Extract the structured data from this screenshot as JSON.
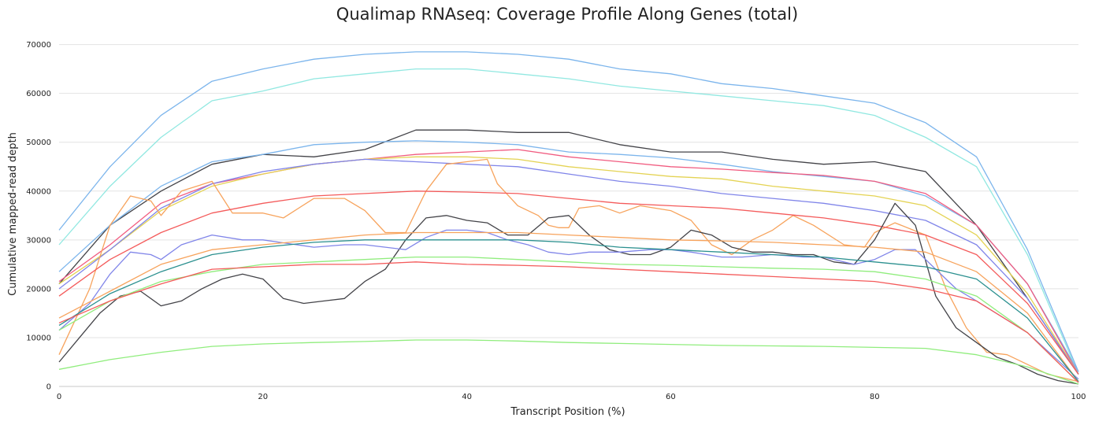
{
  "chart_data": {
    "type": "line",
    "title": "Qualimap RNAseq: Coverage Profile Along Genes (total)",
    "xlabel": "Transcript Position (%)",
    "ylabel": "Cumulative mapped-read depth",
    "xlim": [
      0,
      100
    ],
    "ylim": [
      0,
      73000
    ],
    "xticks": [
      0,
      20,
      40,
      60,
      80,
      100
    ],
    "yticks": [
      0,
      10000,
      20000,
      30000,
      40000,
      50000,
      60000,
      70000
    ],
    "grid": "horizontal",
    "legend": "none",
    "series": [
      {
        "color": "#7cb5ec",
        "x": [
          0,
          5,
          10,
          15,
          20,
          25,
          30,
          35,
          40,
          45,
          50,
          55,
          60,
          65,
          70,
          75,
          80,
          85,
          90,
          95,
          100
        ],
        "y": [
          32000,
          45000,
          55500,
          62500,
          65000,
          67000,
          68000,
          68500,
          68500,
          68000,
          67000,
          65000,
          64000,
          62000,
          61000,
          59500,
          58000,
          54000,
          47000,
          28000,
          3000
        ]
      },
      {
        "color": "#91e8e1",
        "x": [
          0,
          5,
          10,
          15,
          20,
          25,
          30,
          35,
          40,
          45,
          50,
          55,
          60,
          65,
          70,
          75,
          80,
          85,
          90,
          95,
          100
        ],
        "y": [
          29000,
          41000,
          51000,
          58500,
          60500,
          63000,
          64000,
          65000,
          65000,
          64000,
          63000,
          61500,
          60500,
          59500,
          58500,
          57500,
          55500,
          51000,
          45000,
          27000,
          2500
        ]
      },
      {
        "color": "#434348",
        "x": [
          0,
          5,
          10,
          15,
          20,
          25,
          30,
          35,
          40,
          45,
          50,
          55,
          60,
          65,
          70,
          75,
          80,
          85,
          90,
          95,
          100
        ],
        "y": [
          21000,
          33000,
          40000,
          45500,
          47500,
          47000,
          48500,
          52500,
          52500,
          52000,
          52000,
          49500,
          48000,
          48000,
          46500,
          45500,
          46000,
          44000,
          33000,
          18000,
          2500
        ]
      },
      {
        "color": "#7cb5ec",
        "x": [
          0,
          5,
          10,
          15,
          20,
          25,
          30,
          35,
          40,
          45,
          50,
          55,
          60,
          65,
          70,
          75,
          80,
          85,
          90,
          95,
          100
        ],
        "y": [
          23500,
          33000,
          41000,
          46000,
          47500,
          49500,
          50000,
          50300,
          50000,
          49500,
          48000,
          47500,
          46800,
          45500,
          44000,
          43000,
          42000,
          39000,
          33000,
          21000,
          3000
        ]
      },
      {
        "color": "#f15c80",
        "x": [
          0,
          5,
          10,
          15,
          20,
          25,
          30,
          35,
          40,
          45,
          50,
          55,
          60,
          65,
          70,
          75,
          80,
          85,
          90,
          95,
          100
        ],
        "y": [
          21500,
          29000,
          37500,
          41500,
          43500,
          45500,
          46500,
          47500,
          48000,
          48500,
          47000,
          46000,
          45000,
          44500,
          43800,
          43200,
          42000,
          39500,
          33000,
          21000,
          2500
        ]
      },
      {
        "color": "#e4d354",
        "x": [
          0,
          5,
          10,
          15,
          20,
          25,
          30,
          35,
          40,
          45,
          50,
          55,
          60,
          65,
          70,
          75,
          80,
          85,
          90,
          95,
          100
        ],
        "y": [
          21000,
          28000,
          36000,
          41000,
          43500,
          45500,
          46500,
          47000,
          47000,
          46500,
          45000,
          44000,
          43000,
          42500,
          41000,
          40000,
          39000,
          37000,
          31000,
          19000,
          2500
        ]
      },
      {
        "color": "#8085e9",
        "x": [
          0,
          5,
          10,
          15,
          20,
          25,
          30,
          35,
          40,
          45,
          50,
          55,
          60,
          65,
          70,
          75,
          80,
          85,
          90,
          95,
          100
        ],
        "y": [
          20000,
          28000,
          36500,
          41500,
          44000,
          45500,
          46500,
          46000,
          45500,
          45000,
          43500,
          42000,
          41000,
          39500,
          38500,
          37500,
          36000,
          34000,
          29000,
          18000,
          2500
        ]
      },
      {
        "color": "#f7a35c",
        "x": [
          0,
          3,
          5,
          7,
          9,
          10,
          12,
          15,
          17,
          20,
          22,
          25,
          28,
          30,
          32,
          34,
          36,
          38,
          40,
          42,
          43,
          45,
          47,
          48,
          49,
          50,
          51,
          53,
          55,
          57,
          60,
          62,
          64,
          66,
          68,
          70,
          72,
          74,
          77,
          79,
          80,
          82,
          85,
          87,
          89,
          91,
          93,
          95,
          97,
          100
        ],
        "y": [
          6500,
          20000,
          33000,
          39000,
          38000,
          35000,
          40000,
          42000,
          35500,
          35500,
          34500,
          38500,
          38500,
          36000,
          31500,
          31500,
          40000,
          45500,
          46000,
          46500,
          41500,
          37000,
          35000,
          33000,
          32500,
          32500,
          36500,
          37000,
          35500,
          37000,
          36000,
          34000,
          29000,
          27000,
          30000,
          32000,
          35000,
          33000,
          29000,
          28500,
          31500,
          33500,
          31000,
          20000,
          12000,
          7000,
          6500,
          4500,
          2500,
          1000
        ]
      },
      {
        "color": "#f45b5b",
        "x": [
          0,
          5,
          10,
          15,
          20,
          25,
          30,
          35,
          40,
          45,
          50,
          55,
          60,
          65,
          70,
          75,
          80,
          85,
          90,
          95,
          100
        ],
        "y": [
          18500,
          26000,
          31500,
          35500,
          37500,
          39000,
          39500,
          40000,
          39800,
          39500,
          38500,
          37500,
          37000,
          36500,
          35500,
          34500,
          33000,
          31000,
          27000,
          17000,
          2500
        ]
      },
      {
        "color": "#434348",
        "x": [
          0,
          2,
          4,
          6,
          8,
          10,
          12,
          14,
          16,
          18,
          20,
          22,
          24,
          26,
          28,
          30,
          32,
          34,
          36,
          38,
          40,
          42,
          44,
          46,
          48,
          50,
          52,
          54,
          56,
          58,
          60,
          62,
          64,
          66,
          68,
          70,
          72,
          74,
          76,
          78,
          80,
          82,
          84,
          86,
          88,
          90,
          92,
          94,
          96,
          98,
          100
        ],
        "y": [
          5000,
          10000,
          15000,
          18500,
          19500,
          16500,
          17500,
          20000,
          22000,
          23000,
          22000,
          18000,
          17000,
          17500,
          18000,
          21500,
          24000,
          30000,
          34500,
          35000,
          34000,
          33500,
          31000,
          31000,
          34500,
          35000,
          31000,
          28000,
          27000,
          27000,
          28500,
          32000,
          31000,
          28500,
          27500,
          27500,
          27000,
          27000,
          25500,
          25000,
          30000,
          37500,
          33000,
          18500,
          12000,
          9000,
          6000,
          4500,
          2500,
          1200,
          500
        ]
      },
      {
        "color": "#8085e9",
        "x": [
          0,
          3,
          5,
          7,
          9,
          10,
          12,
          15,
          18,
          20,
          25,
          28,
          30,
          34,
          36,
          38,
          40,
          42,
          44,
          46,
          48,
          50,
          52,
          55,
          58,
          60,
          62,
          65,
          67,
          70,
          73,
          75,
          78,
          80,
          82,
          84,
          86,
          88,
          90,
          95,
          100
        ],
        "y": [
          11500,
          17000,
          23000,
          27500,
          27000,
          26000,
          29000,
          31000,
          30000,
          30000,
          28500,
          29000,
          29000,
          28000,
          30500,
          32000,
          32000,
          31500,
          30000,
          29000,
          27500,
          27000,
          27500,
          27500,
          28000,
          28000,
          27500,
          26500,
          26500,
          27000,
          26500,
          26500,
          25000,
          26000,
          28000,
          28000,
          24000,
          20000,
          17500,
          11000,
          1500
        ]
      },
      {
        "color": "#f7a35c",
        "x": [
          0,
          5,
          10,
          15,
          20,
          25,
          30,
          35,
          40,
          45,
          50,
          55,
          60,
          65,
          70,
          75,
          80,
          85,
          90,
          95,
          100
        ],
        "y": [
          14000,
          19500,
          25000,
          28000,
          29000,
          30000,
          31000,
          31500,
          31500,
          31500,
          31000,
          30500,
          30000,
          29800,
          29500,
          29000,
          28500,
          27500,
          23500,
          15000,
          1000
        ]
      },
      {
        "color": "#2b908f",
        "x": [
          0,
          5,
          10,
          15,
          20,
          25,
          30,
          35,
          40,
          45,
          50,
          55,
          60,
          65,
          70,
          75,
          80,
          85,
          90,
          95,
          100
        ],
        "y": [
          12500,
          19000,
          23500,
          27000,
          28500,
          29500,
          30000,
          30000,
          30000,
          30000,
          29500,
          28500,
          28000,
          27500,
          27000,
          26500,
          25500,
          24500,
          22000,
          14000,
          1000
        ]
      },
      {
        "color": "#90ed7d",
        "x": [
          0,
          5,
          10,
          15,
          20,
          25,
          30,
          35,
          40,
          45,
          50,
          55,
          60,
          65,
          70,
          75,
          80,
          85,
          90,
          95,
          100
        ],
        "y": [
          11500,
          17500,
          21500,
          23500,
          25000,
          25500,
          26000,
          26500,
          26500,
          26000,
          25500,
          25000,
          24800,
          24500,
          24200,
          24000,
          23500,
          22000,
          18500,
          11000,
          800
        ]
      },
      {
        "color": "#f45b5b",
        "x": [
          0,
          5,
          10,
          15,
          20,
          25,
          30,
          35,
          40,
          45,
          50,
          55,
          60,
          65,
          70,
          75,
          80,
          85,
          90,
          95,
          100
        ],
        "y": [
          13000,
          17500,
          21000,
          24000,
          24500,
          25000,
          25000,
          25500,
          25000,
          24800,
          24500,
          24000,
          23500,
          23000,
          22500,
          22000,
          21500,
          20000,
          17500,
          11000,
          800
        ]
      },
      {
        "color": "#90ed7d",
        "x": [
          0,
          5,
          10,
          15,
          20,
          25,
          30,
          35,
          40,
          45,
          50,
          55,
          60,
          65,
          70,
          75,
          80,
          85,
          90,
          95,
          100
        ],
        "y": [
          3500,
          5500,
          7000,
          8200,
          8700,
          9000,
          9200,
          9500,
          9500,
          9300,
          9000,
          8800,
          8600,
          8400,
          8300,
          8200,
          8000,
          7800,
          6500,
          4000,
          500
        ]
      }
    ]
  }
}
